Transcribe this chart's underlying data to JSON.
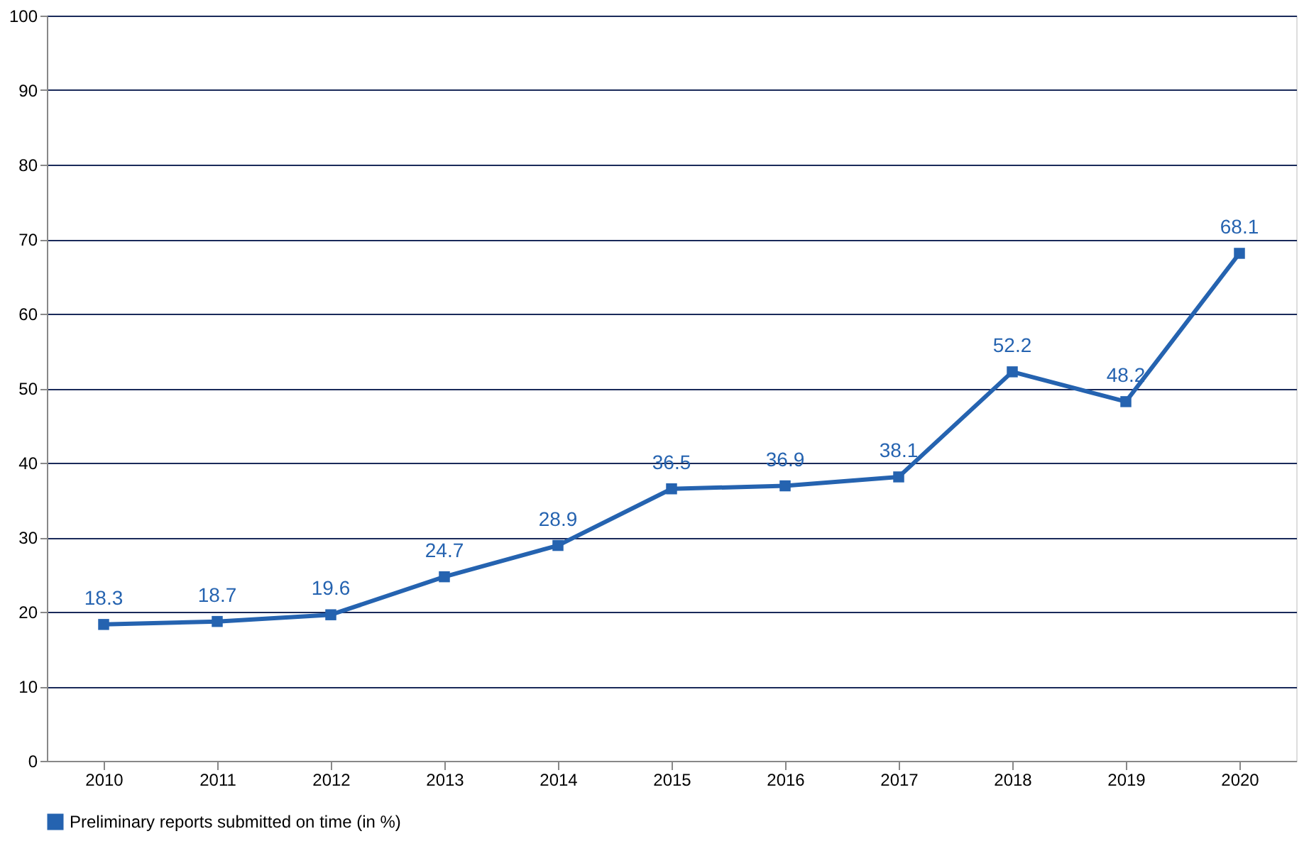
{
  "chart_data": {
    "type": "line",
    "categories": [
      "2010",
      "2011",
      "2012",
      "2013",
      "2014",
      "2015",
      "2016",
      "2017",
      "2018",
      "2019",
      "2020"
    ],
    "series": [
      {
        "name": "Preliminary reports submitted on time (in  %)",
        "color": "#2563b0",
        "values": [
          18.3,
          18.7,
          19.6,
          24.7,
          28.9,
          36.5,
          36.9,
          38.1,
          52.2,
          48.2,
          68.1
        ]
      }
    ],
    "ylim": [
      0,
      100
    ],
    "yticks": [
      0,
      10,
      20,
      30,
      40,
      50,
      60,
      70,
      80,
      90,
      100
    ],
    "grid": "y",
    "legend": "bottom",
    "marker": "square",
    "line_style": "solid",
    "data_labels": true
  }
}
